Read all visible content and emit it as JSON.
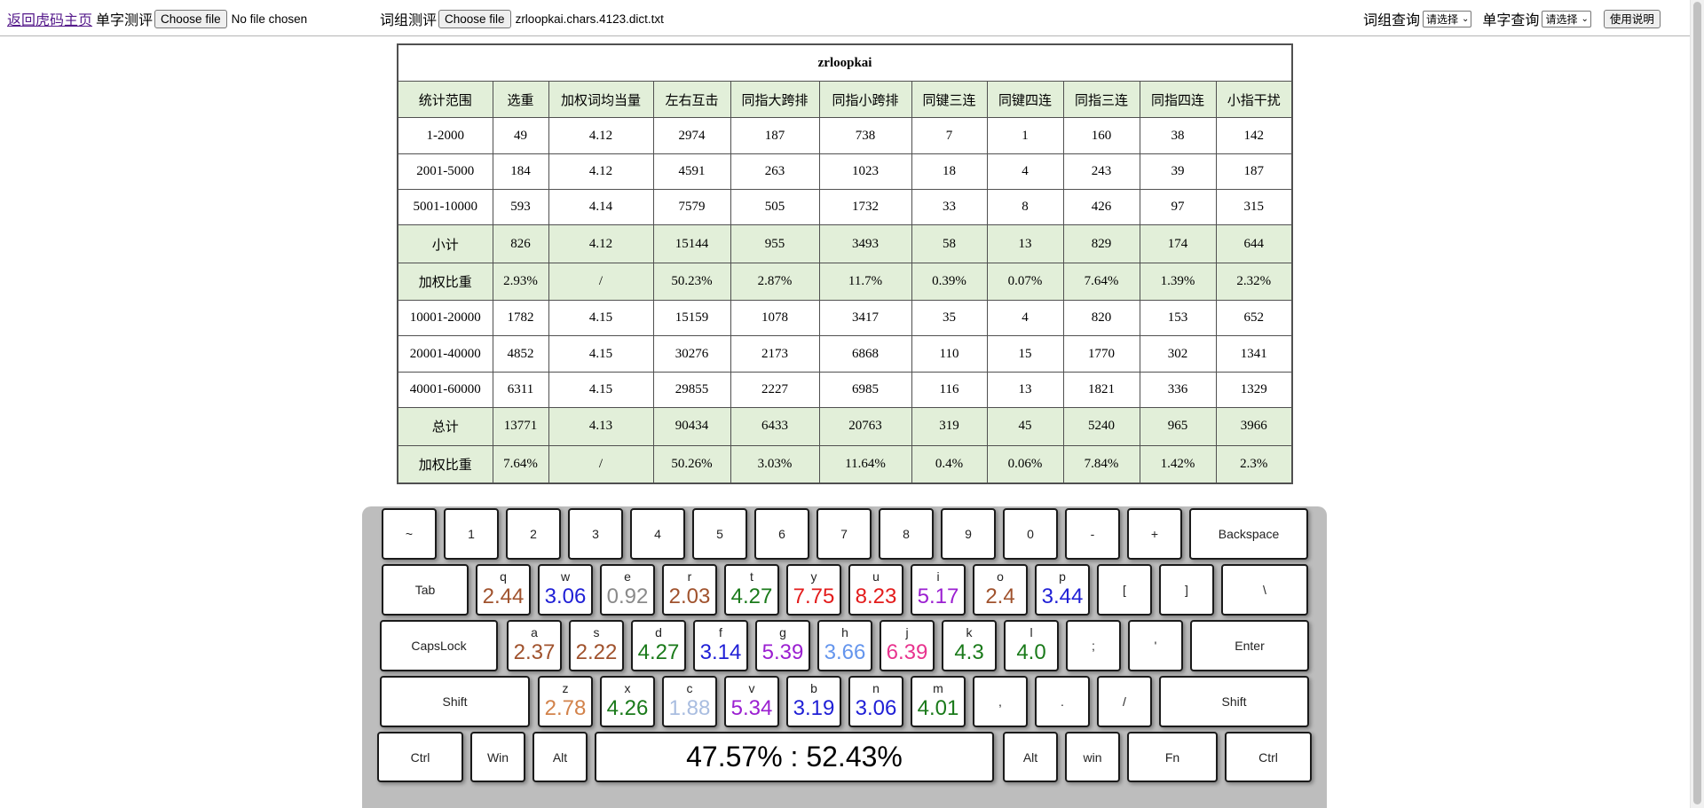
{
  "topbar": {
    "home_link": "返回虎码主页",
    "single_label": "单字测评",
    "choose_file": "Choose file",
    "single_file": "No file chosen",
    "phrase_label": "词组测评",
    "phrase_file": "zrloopkai.chars.4123.dict.txt",
    "phrase_query_label": "词组查询",
    "select_placeholder": "请选择",
    "char_query_label": "单字查询",
    "help_button": "使用说明"
  },
  "table": {
    "title": "zrloopkai",
    "headers": [
      "统计范围",
      "选重",
      "加权词均当量",
      "左右互击",
      "同指大跨排",
      "同指小跨排",
      "同键三连",
      "同键四连",
      "同指三连",
      "同指四连",
      "小指干扰"
    ],
    "rows": [
      {
        "hl": false,
        "cells": [
          "1-2000",
          "49",
          "4.12",
          "2974",
          "187",
          "738",
          "7",
          "1",
          "160",
          "38",
          "142"
        ]
      },
      {
        "hl": false,
        "cells": [
          "2001-5000",
          "184",
          "4.12",
          "4591",
          "263",
          "1023",
          "18",
          "4",
          "243",
          "39",
          "187"
        ]
      },
      {
        "hl": false,
        "cells": [
          "5001-10000",
          "593",
          "4.14",
          "7579",
          "505",
          "1732",
          "33",
          "8",
          "426",
          "97",
          "315"
        ]
      },
      {
        "hl": true,
        "cells": [
          "小计",
          "826",
          "4.12",
          "15144",
          "955",
          "3493",
          "58",
          "13",
          "829",
          "174",
          "644"
        ]
      },
      {
        "hl": true,
        "cells": [
          "加权比重",
          "2.93%",
          "/",
          "50.23%",
          "2.87%",
          "11.7%",
          "0.39%",
          "0.07%",
          "7.64%",
          "1.39%",
          "2.32%"
        ]
      },
      {
        "hl": false,
        "cells": [
          "10001-20000",
          "1782",
          "4.15",
          "15159",
          "1078",
          "3417",
          "35",
          "4",
          "820",
          "153",
          "652"
        ]
      },
      {
        "hl": false,
        "cells": [
          "20001-40000",
          "4852",
          "4.15",
          "30276",
          "2173",
          "6868",
          "110",
          "15",
          "1770",
          "302",
          "1341"
        ]
      },
      {
        "hl": false,
        "cells": [
          "40001-60000",
          "6311",
          "4.15",
          "29855",
          "2227",
          "6985",
          "116",
          "13",
          "1821",
          "336",
          "1329"
        ]
      },
      {
        "hl": true,
        "cells": [
          "总计",
          "13771",
          "4.13",
          "90434",
          "6433",
          "20763",
          "319",
          "45",
          "5240",
          "965",
          "3966"
        ]
      },
      {
        "hl": true,
        "cells": [
          "加权比重",
          "7.64%",
          "/",
          "50.26%",
          "3.03%",
          "11.64%",
          "0.4%",
          "0.06%",
          "7.84%",
          "1.42%",
          "2.3%"
        ]
      }
    ]
  },
  "keyboard": {
    "rows": [
      [
        {
          "label": "~"
        },
        {
          "label": "1"
        },
        {
          "label": "2"
        },
        {
          "label": "3"
        },
        {
          "label": "4"
        },
        {
          "label": "5"
        },
        {
          "label": "6"
        },
        {
          "label": "7"
        },
        {
          "label": "8"
        },
        {
          "label": "9"
        },
        {
          "label": "0"
        },
        {
          "label": "-"
        },
        {
          "label": "+"
        },
        {
          "label": "Backspace"
        }
      ],
      [
        {
          "label": "Tab"
        },
        {
          "label": "q",
          "value": "2.44",
          "color": "#a0522d"
        },
        {
          "label": "w",
          "value": "3.06",
          "color": "#1f1fd6"
        },
        {
          "label": "e",
          "value": "0.92",
          "color": "#8a8a8a"
        },
        {
          "label": "r",
          "value": "2.03",
          "color": "#a0522d"
        },
        {
          "label": "t",
          "value": "4.27",
          "color": "#1a7a1a"
        },
        {
          "label": "y",
          "value": "7.75",
          "color": "#e31b1b"
        },
        {
          "label": "u",
          "value": "8.23",
          "color": "#e31b1b"
        },
        {
          "label": "i",
          "value": "5.17",
          "color": "#9b1fd1"
        },
        {
          "label": "o",
          "value": "2.4",
          "color": "#a0522d"
        },
        {
          "label": "p",
          "value": "3.44",
          "color": "#1f1fd6"
        },
        {
          "label": "["
        },
        {
          "label": "]"
        },
        {
          "label": "\\"
        }
      ],
      [
        {
          "label": "CapsLock"
        },
        {
          "label": "a",
          "value": "2.37",
          "color": "#a0522d"
        },
        {
          "label": "s",
          "value": "2.22",
          "color": "#a0522d"
        },
        {
          "label": "d",
          "value": "4.27",
          "color": "#1a7a1a"
        },
        {
          "label": "f",
          "value": "3.14",
          "color": "#1f1fd6"
        },
        {
          "label": "g",
          "value": "5.39",
          "color": "#9b1fd1"
        },
        {
          "label": "h",
          "value": "3.66",
          "color": "#6495ed"
        },
        {
          "label": "j",
          "value": "6.39",
          "color": "#e8338e"
        },
        {
          "label": "k",
          "value": "4.3",
          "color": "#1a7a1a"
        },
        {
          "label": "l",
          "value": "4.0",
          "color": "#1a7a1a"
        },
        {
          "label": ";"
        },
        {
          "label": "'"
        },
        {
          "label": "Enter"
        }
      ],
      [
        {
          "label": "Shift"
        },
        {
          "label": "z",
          "value": "2.78",
          "color": "#d2824a"
        },
        {
          "label": "x",
          "value": "4.26",
          "color": "#1a7a1a"
        },
        {
          "label": "c",
          "value": "1.88",
          "color": "#a9bde0"
        },
        {
          "label": "v",
          "value": "5.34",
          "color": "#9b1fd1"
        },
        {
          "label": "b",
          "value": "3.19",
          "color": "#1f1fd6"
        },
        {
          "label": "n",
          "value": "3.06",
          "color": "#1f1fd6"
        },
        {
          "label": "m",
          "value": "4.01",
          "color": "#1a7a1a"
        },
        {
          "label": ","
        },
        {
          "label": "."
        },
        {
          "label": "/"
        },
        {
          "label": "Shift"
        }
      ],
      [
        {
          "label": "Ctrl"
        },
        {
          "label": "Win"
        },
        {
          "label": "Alt"
        },
        {
          "label": "47.57% : 52.43%"
        },
        {
          "label": "Alt"
        },
        {
          "label": "win"
        },
        {
          "label": "Fn"
        },
        {
          "label": "Ctrl"
        }
      ]
    ]
  }
}
